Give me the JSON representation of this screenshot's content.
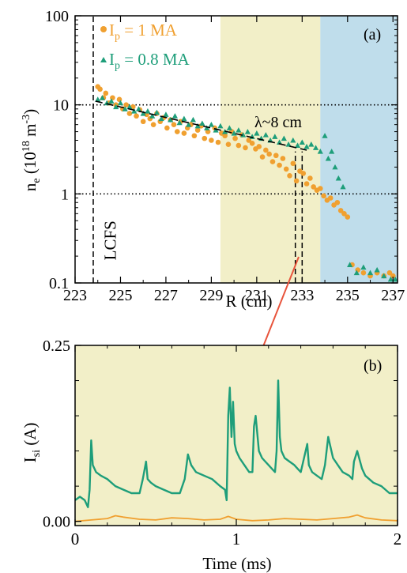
{
  "colors": {
    "orange": "#F0A030",
    "green": "#1E9E7A",
    "band_yellow": "#F2EFC8",
    "band_blue": "#BFDDEB",
    "arrow_red": "#E8543C"
  },
  "chart_data": [
    {
      "type": "scatter",
      "panel_label": "(a)",
      "xlabel": "R (cm)",
      "ylabel": "n_e (10^18 m^-3)",
      "ylabel_parts": {
        "main": "n",
        "main_sub": "e",
        "open": " (10",
        "sup1": "18",
        "unit": " m",
        "sup2": "-3",
        "close": ")"
      },
      "xlim": [
        223,
        237.2
      ],
      "ylim": [
        0.1,
        100
      ],
      "yscale": "log",
      "xticks": [
        223,
        225,
        227,
        229,
        231,
        233,
        235,
        237
      ],
      "yticks": [
        {
          "value": 0.1,
          "label": "0.1"
        },
        {
          "value": 1,
          "label": "1"
        },
        {
          "value": 10,
          "label": "10"
        },
        {
          "value": 100,
          "label": "100"
        }
      ],
      "shaded_regions": [
        {
          "x0": 229.4,
          "x1": 233.8,
          "color": "#F2EFC8"
        },
        {
          "x0": 233.8,
          "x1": 237.2,
          "color": "#BFDDEB"
        }
      ],
      "hlines": [
        1,
        10
      ],
      "vlines": [
        {
          "x": 223.8,
          "y0": 0.1,
          "y1": 100
        },
        {
          "x": 232.7,
          "y0": 0.1,
          "y1": 3.0
        },
        {
          "x": 233.0,
          "y0": 0.1,
          "y1": 3.0
        }
      ],
      "fit_line": {
        "x": [
          223.9,
          233.2
        ],
        "y": [
          11.0,
          3.1
        ]
      },
      "annotations": [
        {
          "text": "LCFS",
          "x": 224.3,
          "y": 0.3
        },
        {
          "text": "λ~8 cm",
          "x": 230.9,
          "y": 5.6
        }
      ],
      "legend_position": "top-left",
      "series": [
        {
          "name": "I_p = 1 MA",
          "legend_parts": {
            "base": "I",
            "sub": "p",
            "rest": " = 1 MA"
          },
          "color": "#F0A030",
          "marker": "circle",
          "x": [
            224.0,
            224.1,
            224.25,
            224.35,
            224.5,
            224.65,
            224.8,
            224.95,
            225.1,
            225.25,
            225.4,
            225.55,
            225.7,
            225.85,
            226.0,
            226.15,
            226.3,
            226.45,
            226.6,
            226.75,
            226.9,
            227.05,
            227.2,
            227.35,
            227.5,
            227.65,
            227.8,
            227.95,
            228.1,
            228.25,
            228.4,
            228.55,
            228.7,
            228.85,
            229.0,
            229.15,
            229.3,
            229.45,
            229.6,
            229.75,
            229.9,
            230.05,
            230.2,
            230.35,
            230.5,
            230.65,
            230.8,
            230.95,
            231.1,
            231.25,
            231.4,
            231.55,
            231.7,
            231.85,
            232.0,
            232.15,
            232.3,
            232.45,
            232.6,
            232.75,
            232.9,
            233.05,
            233.2,
            233.35,
            233.5,
            233.65,
            233.8,
            233.95,
            234.1,
            234.25,
            234.4,
            234.55,
            234.7,
            234.85,
            235.0,
            235.2,
            235.45,
            235.7,
            236.0,
            236.3,
            236.6,
            236.85,
            237.0
          ],
          "y": [
            16.0,
            15.0,
            12.0,
            13.5,
            10.5,
            12.0,
            10.0,
            11.5,
            9.0,
            10.0,
            8.0,
            9.5,
            7.5,
            8.8,
            6.5,
            7.8,
            7.0,
            6.0,
            8.0,
            6.5,
            7.2,
            5.5,
            6.8,
            6.0,
            5.0,
            6.5,
            4.8,
            5.5,
            6.0,
            4.5,
            5.2,
            5.8,
            4.2,
            5.0,
            4.0,
            5.5,
            3.8,
            4.8,
            4.5,
            3.6,
            5.0,
            4.2,
            3.5,
            4.6,
            3.3,
            4.0,
            3.7,
            3.2,
            3.4,
            2.6,
            3.1,
            2.8,
            2.3,
            2.7,
            2.1,
            2.5,
            1.9,
            1.6,
            2.2,
            1.4,
            1.8,
            1.7,
            1.3,
            1.5,
            1.2,
            1.1,
            1.15,
            0.95,
            0.85,
            0.9,
            0.75,
            0.8,
            0.65,
            0.6,
            0.55,
            0.16,
            0.14,
            0.13,
            0.12,
            0.13,
            0.12,
            0.13,
            0.12
          ]
        },
        {
          "name": "I_p = 0.8 MA",
          "legend_parts": {
            "base": "I",
            "sub": "p",
            "rest": " = 0.8 MA"
          },
          "color": "#1E9E7A",
          "marker": "triangle",
          "x": [
            224.0,
            224.2,
            224.4,
            224.6,
            224.8,
            225.0,
            225.2,
            225.4,
            225.6,
            225.8,
            226.0,
            226.2,
            226.4,
            226.6,
            226.8,
            227.0,
            227.2,
            227.4,
            227.6,
            227.8,
            228.0,
            228.2,
            228.4,
            228.6,
            228.8,
            229.0,
            229.2,
            229.4,
            229.6,
            229.8,
            230.0,
            230.2,
            230.4,
            230.6,
            230.8,
            231.0,
            231.2,
            231.4,
            231.6,
            231.8,
            232.0,
            232.2,
            232.4,
            232.6,
            232.8,
            233.0,
            233.2,
            233.4,
            233.6,
            233.8,
            234.0,
            234.15,
            234.3,
            234.45,
            234.6,
            234.8,
            235.1,
            235.4,
            235.7,
            236.0,
            236.3,
            236.6,
            236.9,
            237.1
          ],
          "y": [
            11.5,
            12.0,
            10.5,
            11.0,
            9.5,
            10.5,
            9.0,
            9.5,
            8.5,
            9.0,
            8.0,
            8.5,
            7.5,
            8.2,
            7.0,
            7.8,
            6.8,
            7.5,
            6.3,
            7.0,
            6.0,
            6.8,
            5.8,
            6.2,
            5.5,
            6.0,
            5.2,
            5.8,
            5.0,
            5.5,
            4.8,
            5.2,
            4.6,
            5.0,
            4.4,
            4.8,
            4.2,
            4.6,
            4.0,
            4.4,
            3.8,
            4.2,
            3.6,
            4.0,
            3.5,
            3.8,
            3.4,
            3.6,
            3.3,
            3.0,
            4.5,
            2.5,
            3.0,
            2.0,
            1.5,
            1.2,
            0.16,
            0.13,
            0.15,
            0.13,
            0.14,
            0.12,
            0.11,
            0.11
          ]
        }
      ]
    },
    {
      "type": "line",
      "panel_label": "(b)",
      "xlabel": "Time (ms)",
      "ylabel": "I_si (A)",
      "ylabel_parts": {
        "main": "I",
        "main_sub": "si",
        "rest": " (A)"
      },
      "xlim": [
        0,
        2
      ],
      "ylim": [
        -0.006,
        0.25
      ],
      "xticks": [
        {
          "value": 0,
          "label": "0"
        },
        {
          "value": 1,
          "label": "1"
        },
        {
          "value": 2,
          "label": "2"
        }
      ],
      "yticks": [
        {
          "value": 0,
          "label": "0.00"
        },
        {
          "value": 0.25,
          "label": "0.25"
        }
      ],
      "background": "#F2EFC8",
      "series": [
        {
          "name": "I_p = 0.8 MA",
          "color": "#1E9E7A",
          "x": [
            0.0,
            0.03,
            0.06,
            0.08,
            0.09,
            0.1,
            0.11,
            0.13,
            0.16,
            0.2,
            0.25,
            0.3,
            0.35,
            0.4,
            0.42,
            0.44,
            0.45,
            0.47,
            0.5,
            0.55,
            0.6,
            0.65,
            0.68,
            0.7,
            0.72,
            0.75,
            0.8,
            0.85,
            0.9,
            0.93,
            0.94,
            0.95,
            0.96,
            0.97,
            0.98,
            0.99,
            1.0,
            1.02,
            1.05,
            1.08,
            1.1,
            1.11,
            1.12,
            1.14,
            1.16,
            1.18,
            1.2,
            1.22,
            1.24,
            1.25,
            1.26,
            1.27,
            1.28,
            1.3,
            1.33,
            1.36,
            1.38,
            1.4,
            1.42,
            1.44,
            1.45,
            1.47,
            1.5,
            1.53,
            1.55,
            1.57,
            1.6,
            1.63,
            1.66,
            1.7,
            1.72,
            1.73,
            1.75,
            1.78,
            1.8,
            1.85,
            1.9,
            1.95,
            2.0
          ],
          "y": [
            0.03,
            0.035,
            0.03,
            0.02,
            0.045,
            0.115,
            0.08,
            0.07,
            0.065,
            0.06,
            0.05,
            0.045,
            0.04,
            0.04,
            0.06,
            0.085,
            0.06,
            0.055,
            0.05,
            0.045,
            0.04,
            0.04,
            0.06,
            0.095,
            0.08,
            0.07,
            0.065,
            0.06,
            0.05,
            0.045,
            0.03,
            0.15,
            0.19,
            0.12,
            0.17,
            0.11,
            0.1,
            0.09,
            0.08,
            0.07,
            0.07,
            0.135,
            0.15,
            0.1,
            0.09,
            0.085,
            0.08,
            0.075,
            0.07,
            0.1,
            0.2,
            0.12,
            0.1,
            0.09,
            0.085,
            0.08,
            0.075,
            0.07,
            0.09,
            0.11,
            0.08,
            0.07,
            0.065,
            0.06,
            0.08,
            0.12,
            0.09,
            0.08,
            0.07,
            0.065,
            0.06,
            0.085,
            0.1,
            0.075,
            0.065,
            0.055,
            0.05,
            0.04,
            0.04
          ]
        },
        {
          "name": "I_p = 1 MA",
          "color": "#F0A030",
          "x": [
            0.0,
            0.1,
            0.2,
            0.25,
            0.3,
            0.4,
            0.5,
            0.6,
            0.7,
            0.8,
            0.9,
            0.95,
            1.0,
            1.1,
            1.2,
            1.3,
            1.4,
            1.5,
            1.6,
            1.7,
            1.75,
            1.8,
            1.9,
            2.0
          ],
          "y": [
            0.0,
            0.002,
            0.004,
            0.008,
            0.006,
            0.003,
            0.002,
            0.005,
            0.004,
            0.002,
            0.003,
            0.007,
            0.003,
            0.001,
            0.002,
            0.004,
            0.003,
            0.002,
            0.004,
            0.006,
            0.009,
            0.005,
            0.002,
            0.001
          ]
        }
      ]
    }
  ]
}
